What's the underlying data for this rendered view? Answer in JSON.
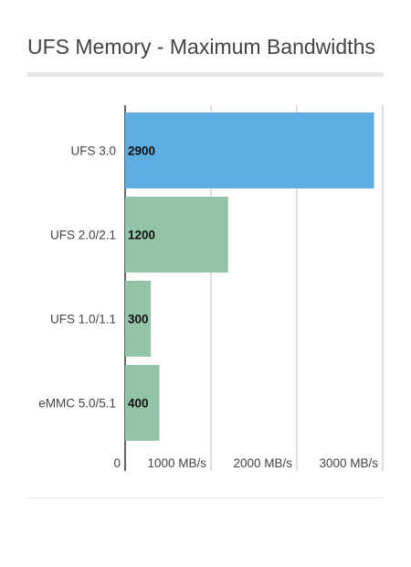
{
  "chart_data": {
    "type": "bar",
    "orientation": "horizontal",
    "title": "UFS Memory - Maximum Bandwidths",
    "categories": [
      "UFS 3.0",
      "UFS 2.0/2.1",
      "UFS 1.0/1.1",
      "eMMC 5.0/5.1"
    ],
    "values": [
      2900,
      1200,
      300,
      400
    ],
    "data_labels": [
      "2900",
      "1200",
      "300",
      "400"
    ],
    "bar_colors": [
      "#5dade2",
      "#93c4a8",
      "#93c4a8",
      "#93c4a8"
    ],
    "xlim": [
      0,
      3000
    ],
    "x_ticks": [
      0,
      1000,
      2000,
      3000
    ],
    "x_tick_labels": [
      "0",
      "1000 MB/s",
      "2000 MB/s",
      "3000 MB/s"
    ],
    "xlabel": "",
    "ylabel": "",
    "grid": true,
    "legend": "none"
  }
}
